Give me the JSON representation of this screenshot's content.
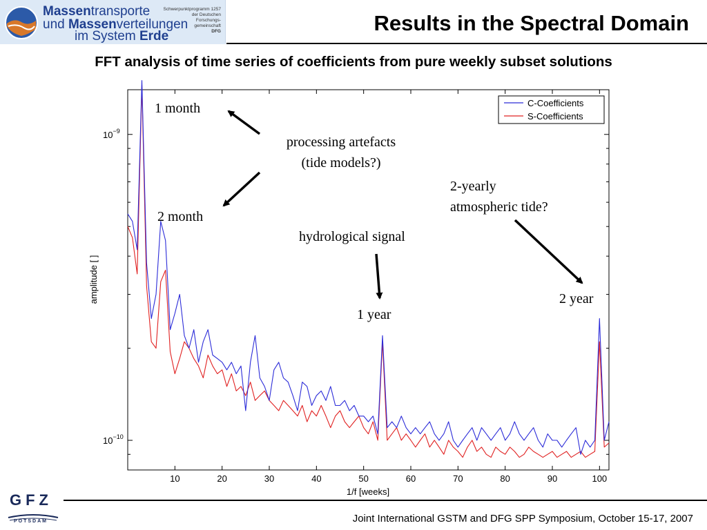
{
  "header": {
    "logo": {
      "line1_bold": "Massen",
      "line1_rest": "transporte",
      "line2_pre": "und ",
      "line2_bold": "Massen",
      "line2_rest": "verteilungen",
      "line3_pre": "im System ",
      "line3_bold": "Erde",
      "small_text": [
        "Schwerpunktprogramm 1257",
        "der Deutschen",
        "Forschungs-",
        "gemeinschaft",
        "DFG"
      ]
    },
    "title": "Results in the Spectral Domain"
  },
  "subtitle": "FFT analysis of time series of coefficients from pure weekly subset solutions",
  "chart_data": {
    "type": "line",
    "xlabel": "1/f [weeks]",
    "ylabel": "amplitude [ ]",
    "xlim": [
      0,
      102
    ],
    "ylim": [
      8e-11,
      1.4e-09
    ],
    "yscale": "log",
    "grid": false,
    "legend_position": "top-right",
    "x_ticks": [
      "10",
      "20",
      "30",
      "40",
      "50",
      "60",
      "70",
      "80",
      "90",
      "100"
    ],
    "y_tick_labels": [
      {
        "value": 1e-09,
        "base": "10",
        "exp": "−9"
      },
      {
        "value": 1e-10,
        "base": "10",
        "exp": "−10"
      }
    ],
    "colors": {
      "C-Coefficients": "#2b2bd8",
      "S-Coefficients": "#e02020"
    },
    "x": [
      0,
      1,
      2,
      3,
      4,
      5,
      6,
      7,
      8,
      9,
      10,
      11,
      12,
      13,
      14,
      15,
      16,
      17,
      18,
      19,
      20,
      21,
      22,
      23,
      24,
      25,
      26,
      27,
      28,
      29,
      30,
      31,
      32,
      33,
      34,
      35,
      36,
      37,
      38,
      39,
      40,
      41,
      42,
      43,
      44,
      45,
      46,
      47,
      48,
      49,
      50,
      51,
      52,
      53,
      54,
      55,
      56,
      57,
      58,
      59,
      60,
      61,
      62,
      63,
      64,
      65,
      66,
      67,
      68,
      69,
      70,
      71,
      72,
      73,
      74,
      75,
      76,
      77,
      78,
      79,
      80,
      81,
      82,
      83,
      84,
      85,
      86,
      87,
      88,
      89,
      90,
      91,
      92,
      93,
      94,
      95,
      96,
      97,
      98,
      99,
      100,
      101,
      102
    ],
    "series": [
      {
        "name": "C-Coefficients",
        "values": [
          5.5e-10,
          5.2e-10,
          4.2e-10,
          1.5e-09,
          3.8e-10,
          2.5e-10,
          3e-10,
          5.2e-10,
          4.5e-10,
          2.3e-10,
          2.6e-10,
          3e-10,
          2.2e-10,
          2e-10,
          2.3e-10,
          1.8e-10,
          2.1e-10,
          2.3e-10,
          1.9e-10,
          1.85e-10,
          1.8e-10,
          1.7e-10,
          1.8e-10,
          1.65e-10,
          1.75e-10,
          1.25e-10,
          1.8e-10,
          2.2e-10,
          1.6e-10,
          1.5e-10,
          1.35e-10,
          1.7e-10,
          1.8e-10,
          1.6e-10,
          1.55e-10,
          1.4e-10,
          1.25e-10,
          1.55e-10,
          1.5e-10,
          1.3e-10,
          1.4e-10,
          1.45e-10,
          1.35e-10,
          1.5e-10,
          1.3e-10,
          1.3e-10,
          1.35e-10,
          1.25e-10,
          1.3e-10,
          1.2e-10,
          1.2e-10,
          1.15e-10,
          1.2e-10,
          1.05e-10,
          2.2e-10,
          1.1e-10,
          1.15e-10,
          1.1e-10,
          1.2e-10,
          1.1e-10,
          1.05e-10,
          1.1e-10,
          1.05e-10,
          1.1e-10,
          1.15e-10,
          1.05e-10,
          1e-10,
          1.05e-10,
          1.15e-10,
          1e-10,
          9.5e-11,
          1e-10,
          1.05e-10,
          1.1e-10,
          1e-10,
          1.1e-10,
          1.05e-10,
          1e-10,
          1.05e-10,
          1.1e-10,
          1e-10,
          1.05e-10,
          1.15e-10,
          1.05e-10,
          1e-10,
          1.05e-10,
          1.1e-10,
          1e-10,
          9.5e-11,
          1.05e-10,
          1e-10,
          1e-10,
          9.5e-11,
          1e-10,
          1.05e-10,
          1.1e-10,
          9e-11,
          1e-10,
          9.5e-11,
          1e-10,
          2.5e-10,
          1e-10,
          1.15e-10
        ]
      },
      {
        "name": "S-Coefficients",
        "values": [
          5e-10,
          4.6e-10,
          3.5e-10,
          1.45e-09,
          3.2e-10,
          2.1e-10,
          2e-10,
          3.3e-10,
          3.6e-10,
          1.95e-10,
          1.65e-10,
          1.85e-10,
          2.1e-10,
          2e-10,
          1.85e-10,
          1.75e-10,
          1.6e-10,
          1.9e-10,
          1.75e-10,
          1.65e-10,
          1.7e-10,
          1.5e-10,
          1.65e-10,
          1.45e-10,
          1.5e-10,
          1.4e-10,
          1.55e-10,
          1.35e-10,
          1.4e-10,
          1.45e-10,
          1.35e-10,
          1.3e-10,
          1.25e-10,
          1.35e-10,
          1.3e-10,
          1.25e-10,
          1.2e-10,
          1.3e-10,
          1.15e-10,
          1.25e-10,
          1.2e-10,
          1.3e-10,
          1.2e-10,
          1.1e-10,
          1.2e-10,
          1.25e-10,
          1.15e-10,
          1.1e-10,
          1.15e-10,
          1.2e-10,
          1.1e-10,
          1.05e-10,
          1.15e-10,
          1e-10,
          2.1e-10,
          1e-10,
          1.05e-10,
          1.1e-10,
          1e-10,
          1.05e-10,
          1e-10,
          9.5e-11,
          1e-10,
          1.05e-10,
          9.5e-11,
          1e-10,
          9.5e-11,
          9e-11,
          1e-10,
          9.5e-11,
          9.2e-11,
          8.8e-11,
          9.5e-11,
          1e-10,
          9.2e-11,
          9.5e-11,
          9e-11,
          8.8e-11,
          9.5e-11,
          9.2e-11,
          9e-11,
          9.5e-11,
          9.2e-11,
          8.8e-11,
          9e-11,
          9.5e-11,
          9.2e-11,
          9e-11,
          8.8e-11,
          9e-11,
          9.2e-11,
          8.8e-11,
          9e-11,
          9.2e-11,
          8.8e-11,
          9e-11,
          9.2e-11,
          8.8e-11,
          9e-11,
          9.2e-11,
          2.1e-10,
          9.5e-11,
          9.8e-11
        ]
      }
    ],
    "annotations": [
      {
        "key": "one_month",
        "text": "1 month"
      },
      {
        "key": "two_month",
        "text": "2 month"
      },
      {
        "key": "proc1",
        "text": "processing artefacts"
      },
      {
        "key": "proc2",
        "text": "(tide models?)"
      },
      {
        "key": "tide1",
        "text": "2-yearly"
      },
      {
        "key": "tide2",
        "text": "atmospheric tide?"
      },
      {
        "key": "hydro",
        "text": "hydrological signal"
      },
      {
        "key": "one_year",
        "text": "1 year"
      },
      {
        "key": "two_year",
        "text": "2 year"
      }
    ]
  },
  "footer": {
    "logo_text": "GFZ",
    "logo_sub": "POTSDAM",
    "text": "Joint International GSTM and DFG SPP Symposium, October 15-17, 2007"
  }
}
